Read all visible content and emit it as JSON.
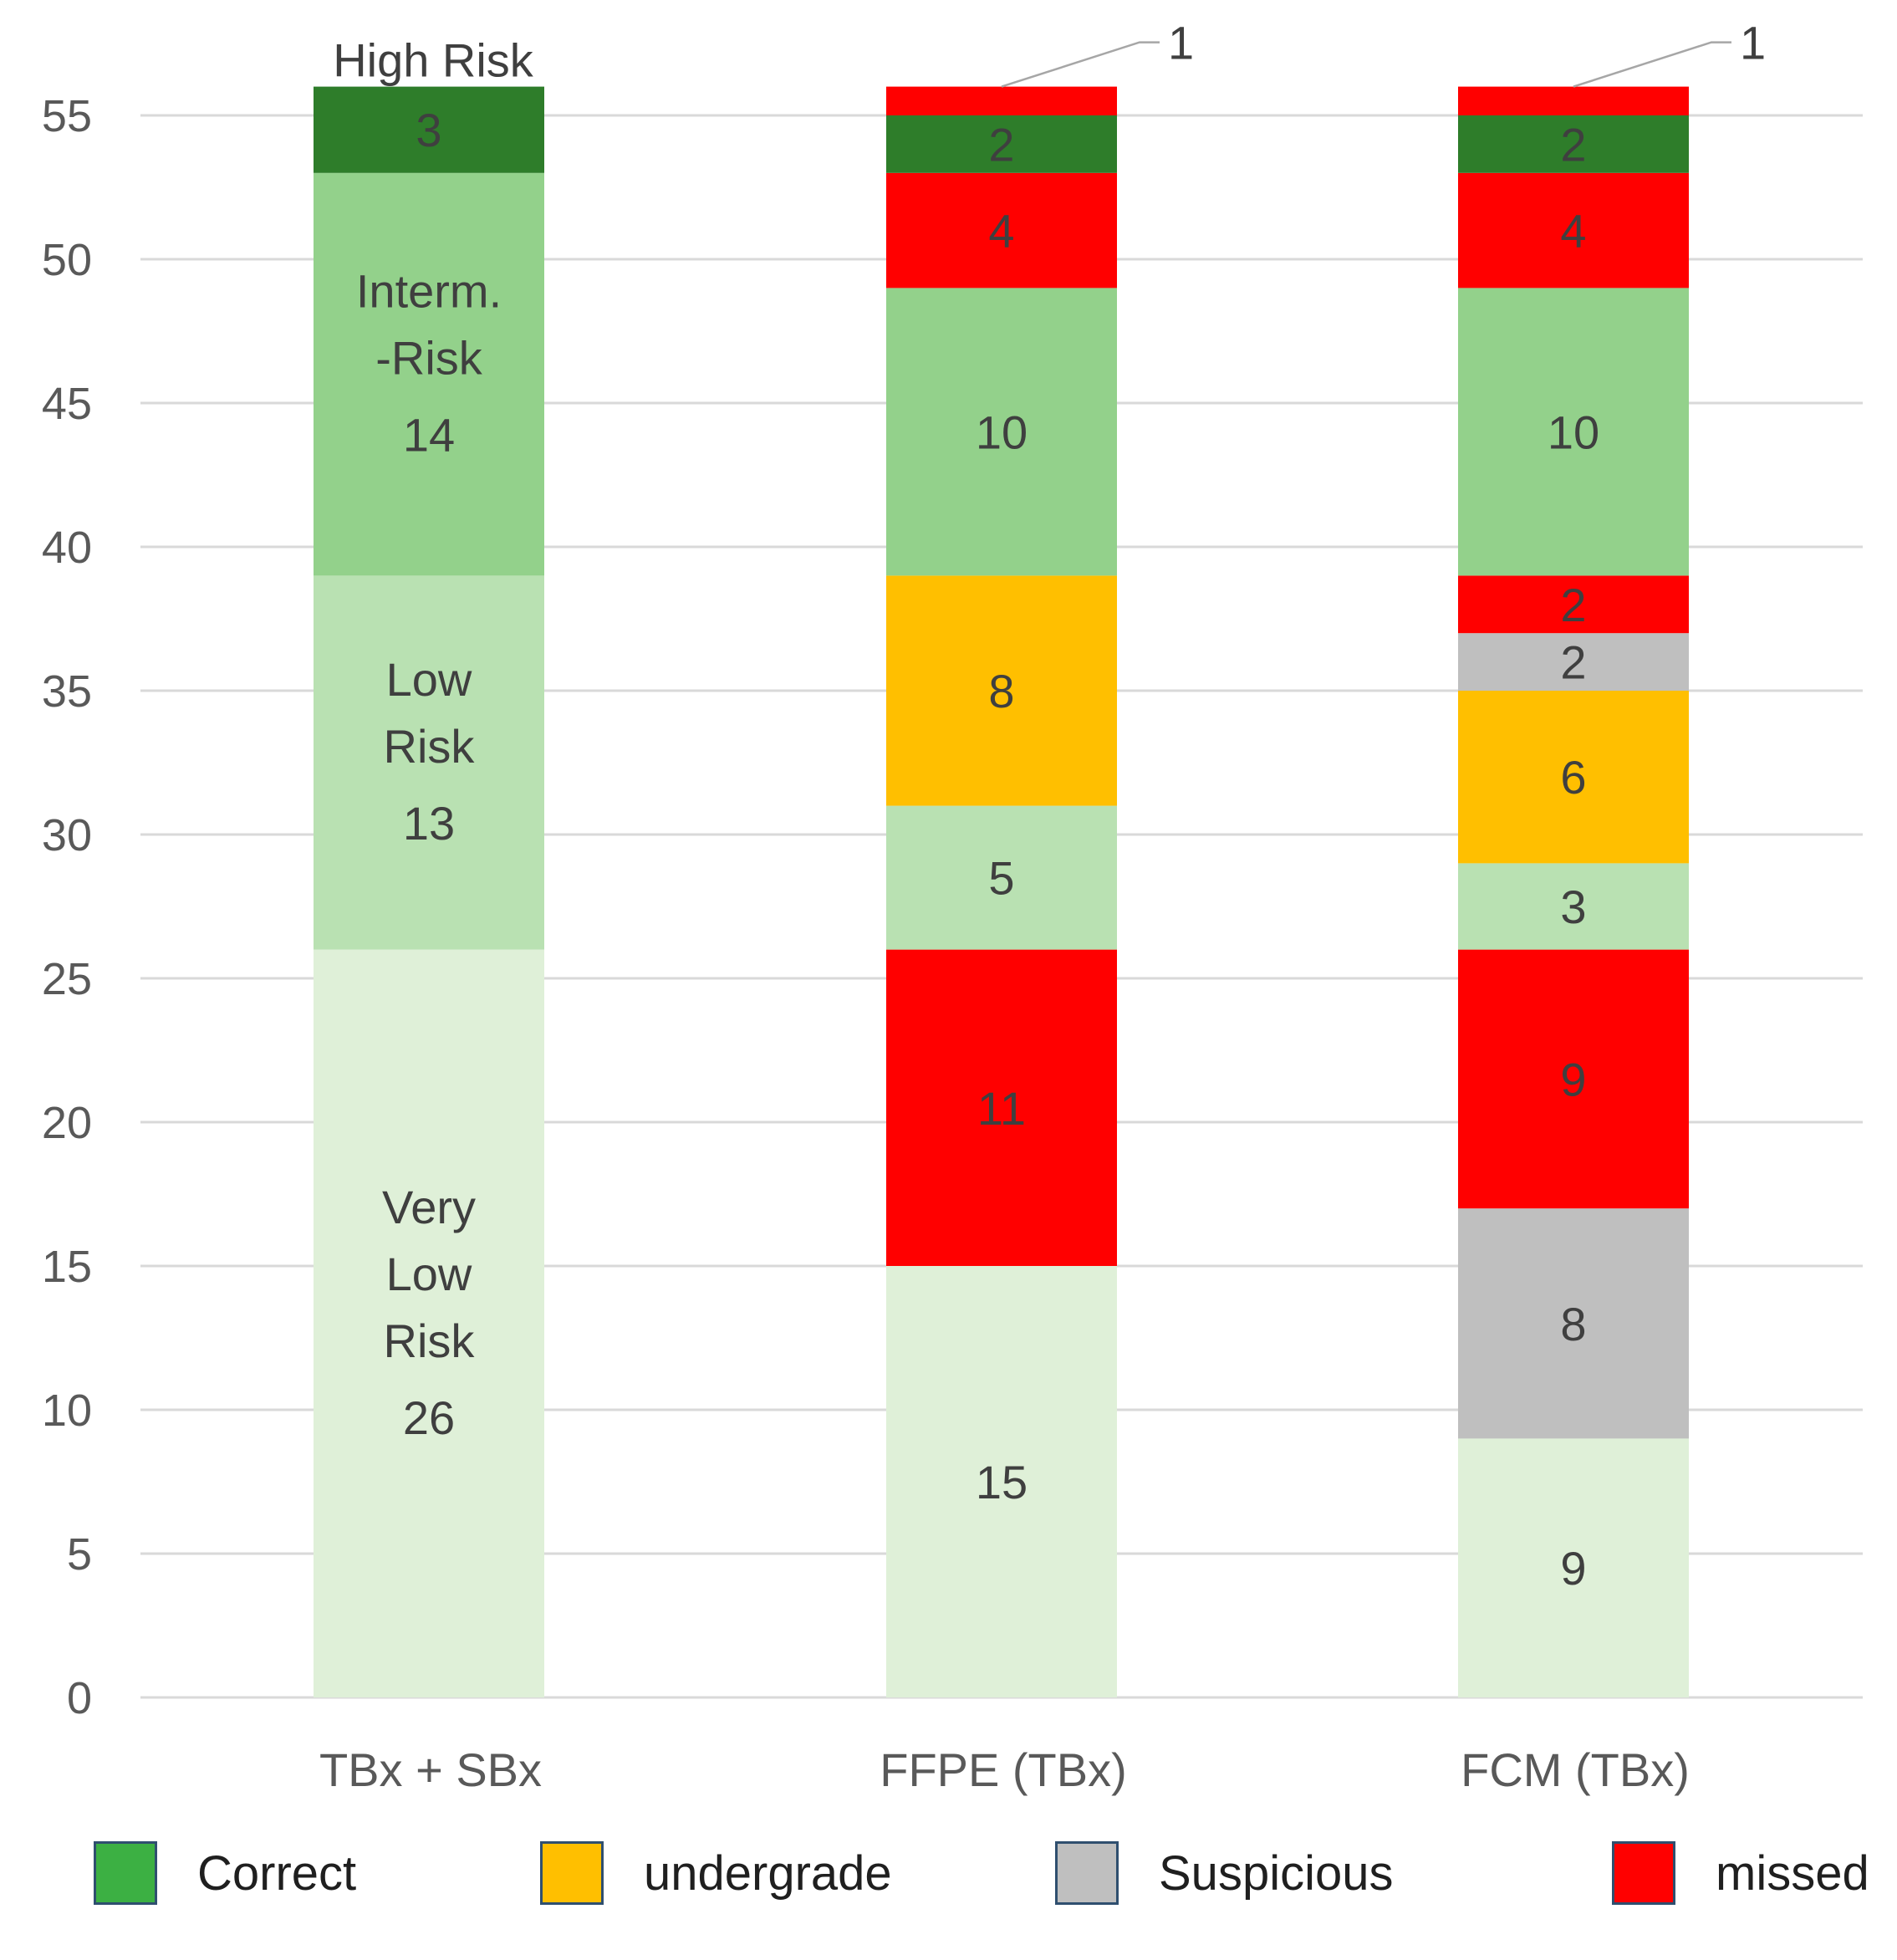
{
  "chart_data": {
    "type": "bar",
    "stacked": true,
    "title": "",
    "xlabel": "",
    "ylabel": "",
    "ylim": [
      0,
      56
    ],
    "yticks": [
      0,
      5,
      10,
      15,
      20,
      25,
      30,
      35,
      40,
      45,
      50,
      55
    ],
    "grid": true,
    "categories": [
      "TBx + SBx",
      "FFPE (TBx)",
      "FCM (TBx)"
    ],
    "stacks": [
      {
        "category": "TBx + SBx",
        "segments": [
          {
            "value": 26,
            "label": "26",
            "color": "#dff0d8",
            "text": [
              "Very",
              "Low",
              "Risk"
            ]
          },
          {
            "value": 13,
            "label": "13",
            "color": "#b9e1b2",
            "text": [
              "Low",
              "Risk"
            ]
          },
          {
            "value": 14,
            "label": "14",
            "color": "#93d18b",
            "text": [
              "Interm.",
              "-Risk"
            ]
          },
          {
            "value": 3,
            "label": "3",
            "color": "#2e7d2a",
            "text": []
          }
        ],
        "top_text": "High Risk"
      },
      {
        "category": "FFPE (TBx)",
        "segments": [
          {
            "value": 15,
            "label": "15",
            "color": "#dff0d8",
            "text": []
          },
          {
            "value": 11,
            "label": "11",
            "color": "#ff0000",
            "text": []
          },
          {
            "value": 5,
            "label": "5",
            "color": "#b9e1b2",
            "text": []
          },
          {
            "value": 8,
            "label": "8",
            "color": "#ffbf00",
            "text": []
          },
          {
            "value": 10,
            "label": "10",
            "color": "#93d18b",
            "text": []
          },
          {
            "value": 4,
            "label": "4",
            "color": "#ff0000",
            "text": []
          },
          {
            "value": 2,
            "label": "2",
            "color": "#2e7d2a",
            "text": []
          },
          {
            "value": 1,
            "label": "1",
            "color": "#ff0000",
            "text": [],
            "callout": true
          }
        ]
      },
      {
        "category": "FCM (TBx)",
        "segments": [
          {
            "value": 9,
            "label": "9",
            "color": "#dff0d8",
            "text": []
          },
          {
            "value": 8,
            "label": "8",
            "color": "#bfbfbf",
            "text": []
          },
          {
            "value": 9,
            "label": "9",
            "color": "#ff0000",
            "text": []
          },
          {
            "value": 3,
            "label": "3",
            "color": "#b9e1b2",
            "text": []
          },
          {
            "value": 6,
            "label": "6",
            "color": "#ffbf00",
            "text": []
          },
          {
            "value": 2,
            "label": "2",
            "color": "#bfbfbf",
            "text": []
          },
          {
            "value": 2,
            "label": "2",
            "color": "#ff0000",
            "text": []
          },
          {
            "value": 10,
            "label": "10",
            "color": "#93d18b",
            "text": []
          },
          {
            "value": 4,
            "label": "4",
            "color": "#ff0000",
            "text": []
          },
          {
            "value": 2,
            "label": "2",
            "color": "#2e7d2a",
            "text": []
          },
          {
            "value": 1,
            "label": "1",
            "color": "#ff0000",
            "text": [],
            "callout": true
          }
        ]
      }
    ],
    "legend": {
      "position": "bottom",
      "entries": [
        {
          "label": "Correct",
          "color": "#3cb043"
        },
        {
          "label": "undergrade",
          "color": "#ffbf00"
        },
        {
          "label": "Suspicious",
          "color": "#bfbfbf"
        },
        {
          "label": "missed",
          "color": "#ff0000"
        }
      ]
    },
    "colors": {
      "grid": "#d9d9d9",
      "axis_text": "#595959",
      "segment_text": "#3f3f3f"
    }
  }
}
